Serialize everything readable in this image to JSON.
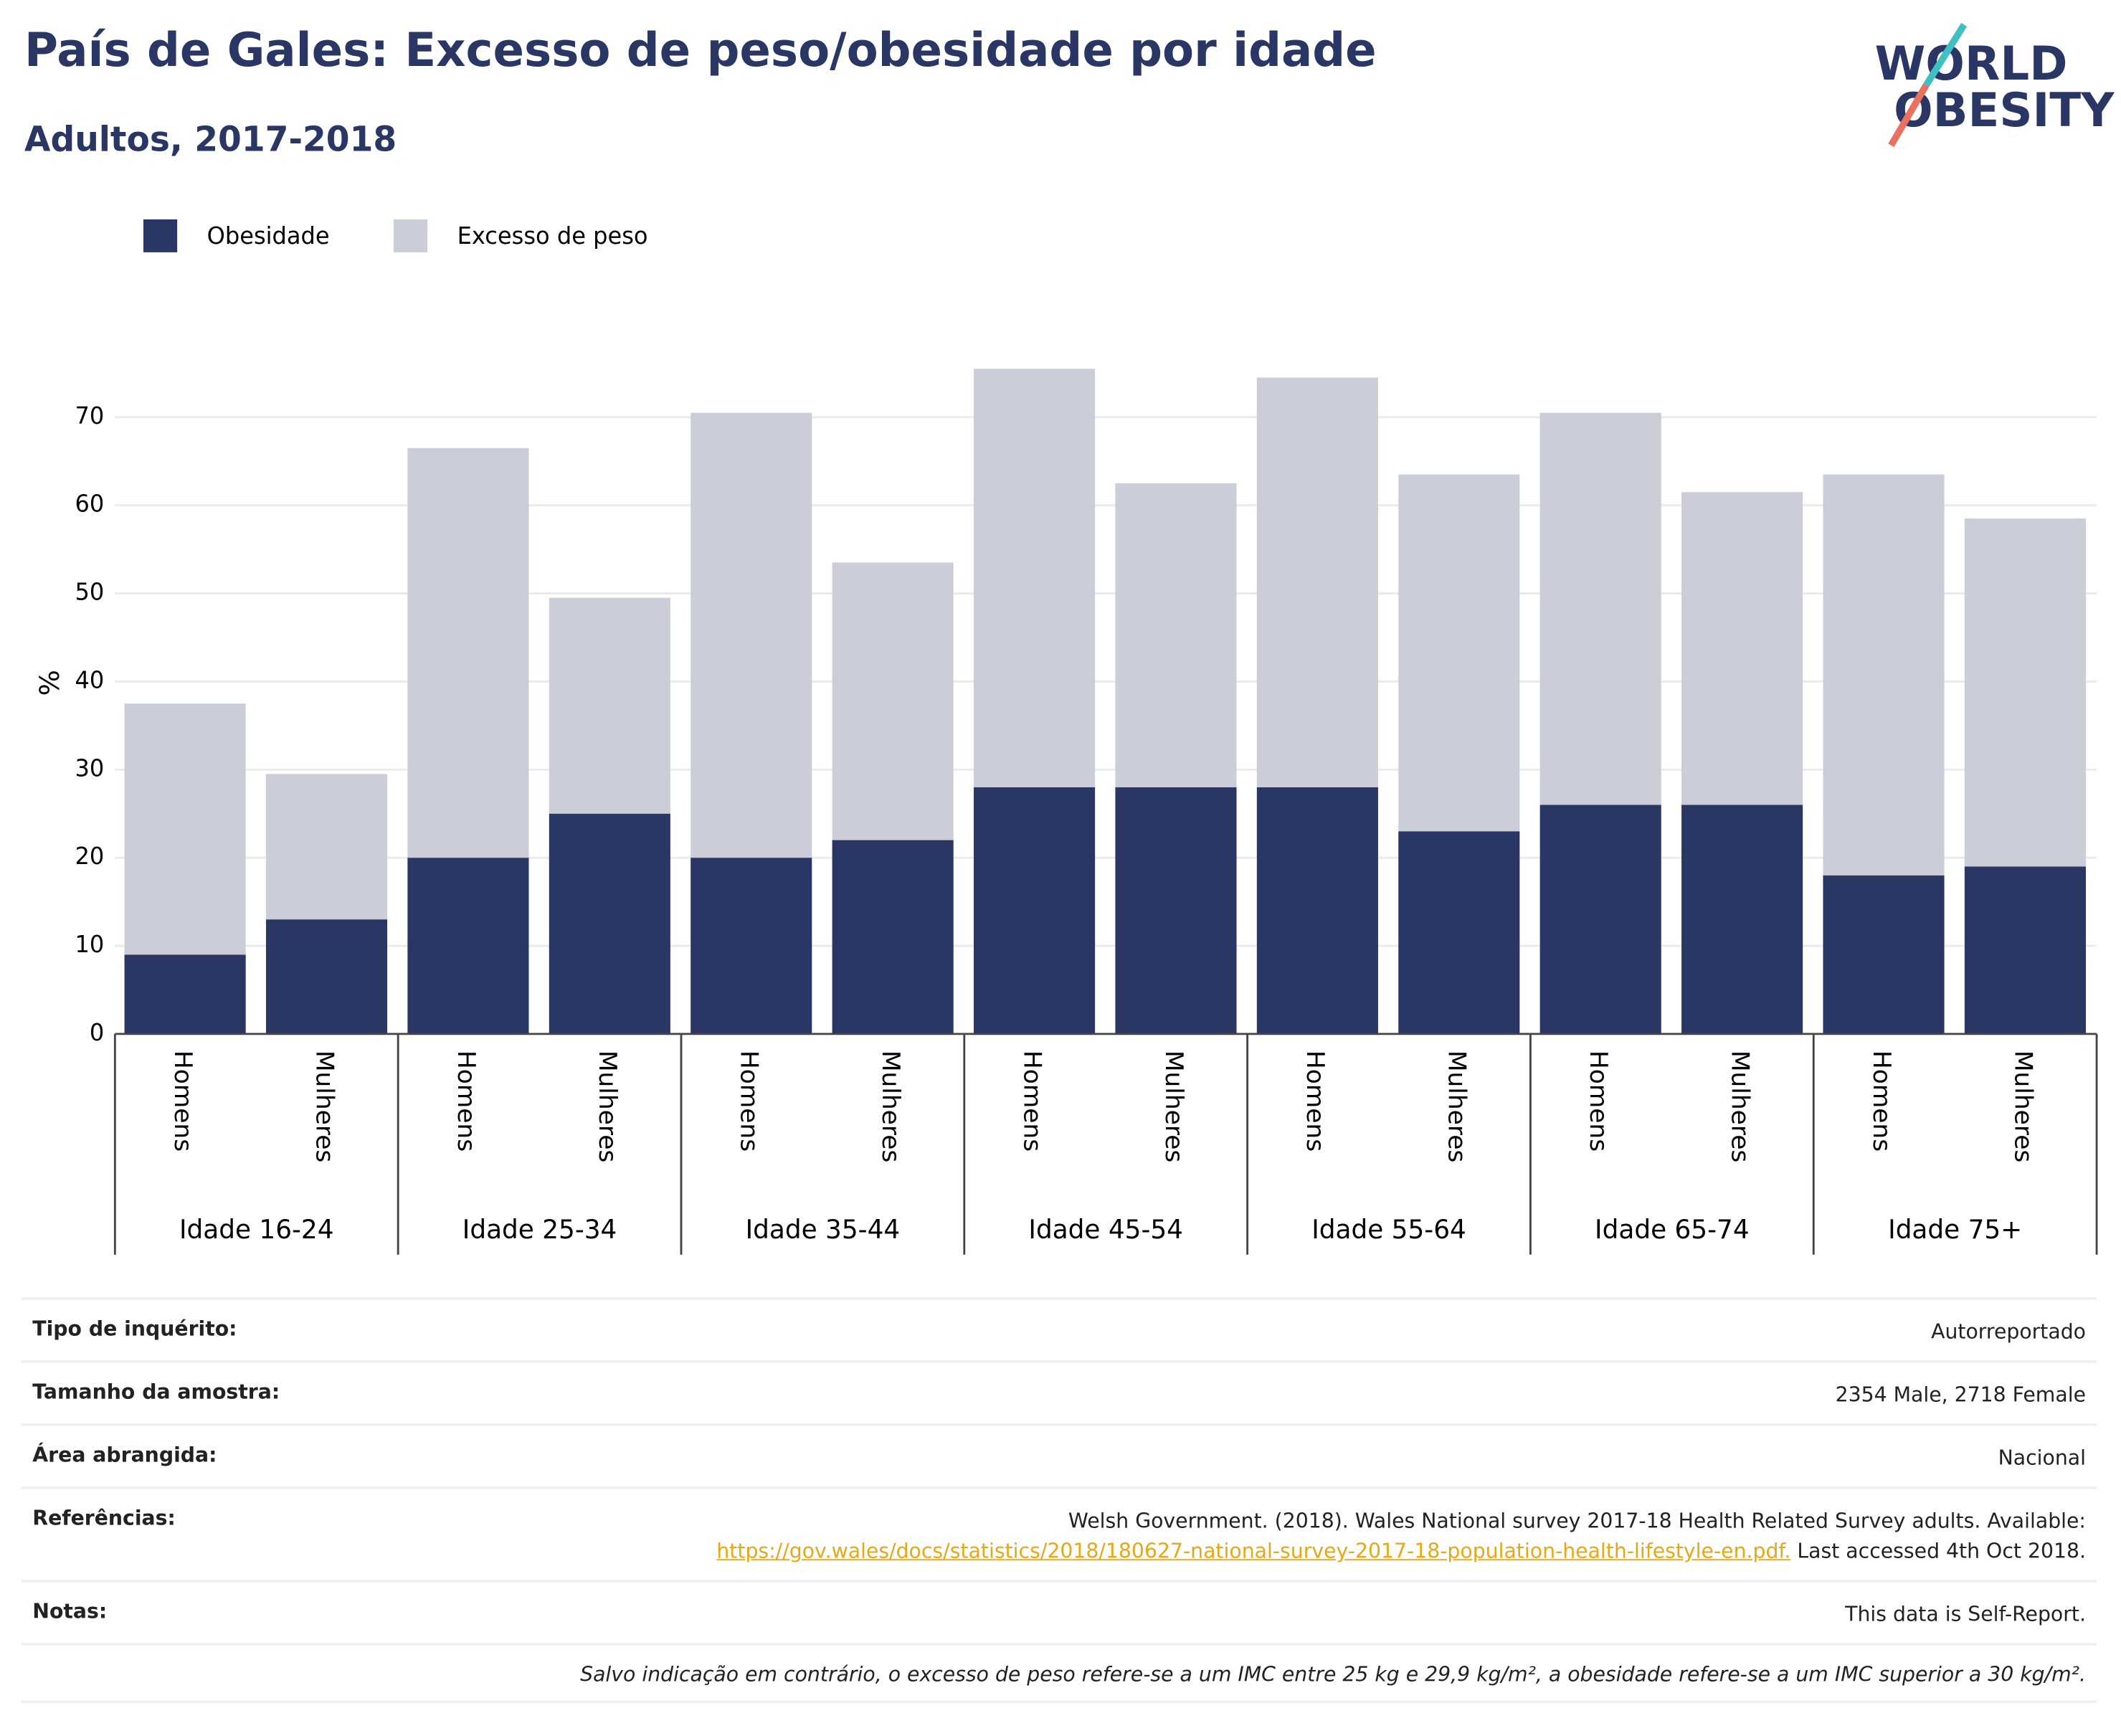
{
  "chart_data": {
    "type": "stacked-bar",
    "title": "País de Gales: Excesso de peso/obesidade por idade",
    "subtitle": "Adultos, 2017-2018",
    "y_label": "%",
    "categories": [
      "Homens",
      "Mulheres",
      "Homens",
      "Mulheres",
      "Homens",
      "Mulheres",
      "Homens",
      "Mulheres",
      "Homens",
      "Mulheres",
      "Homens",
      "Mulheres",
      "Homens",
      "Mulheres"
    ],
    "groups": [
      "Idade 16-24",
      "Idade 25-34",
      "Idade 35-44",
      "Idade 45-54",
      "Idade 55-64",
      "Idade 65-74",
      "Idade 75+"
    ],
    "series": [
      {
        "name": "Obesidade",
        "color": "#2a3663",
        "values": [
          9,
          13,
          20,
          25,
          20,
          22,
          28,
          28,
          28,
          23,
          26,
          26,
          18,
          19
        ]
      },
      {
        "name": "Excesso de peso",
        "color": "#cbcdd8",
        "values": [
          28.5,
          16.5,
          46.5,
          24.5,
          50.5,
          31.5,
          47.5,
          34.5,
          46.5,
          40.5,
          44.5,
          35.5,
          45.5,
          39.5
        ]
      }
    ],
    "ylim": [
      0,
      80
    ],
    "yticks": [
      0,
      10,
      20,
      30,
      40,
      50,
      60,
      70
    ],
    "grid": true
  },
  "logo": {
    "line1": "WORLD",
    "line2": "OBESITY"
  },
  "info": {
    "rows": [
      {
        "label": "Tipo de inquérito:",
        "value": "Autorreportado"
      },
      {
        "label": "Tamanho da amostra:",
        "value": "2354 Male, 2718 Female"
      },
      {
        "label": "Área abrangida:",
        "value": "Nacional"
      }
    ],
    "references": {
      "label": "Referências:",
      "text": "Welsh Government. (2018). Wales National survey 2017-18 Health Related Survey adults. Available:",
      "link": "https://gov.wales/docs/statistics/2018/180627-national-survey-2017-18-population-health-lifestyle-en.pdf.",
      "after": "Last accessed 4th Oct 2018."
    },
    "notes": {
      "label": "Notas:",
      "value": "This data is Self-Report."
    },
    "footnote": "Salvo indicação em contrário, o excesso de peso refere-se a um IMC entre 25 kg e 29,9 kg/m², a obesidade refere-se a um IMC superior a 30 kg/m²."
  }
}
